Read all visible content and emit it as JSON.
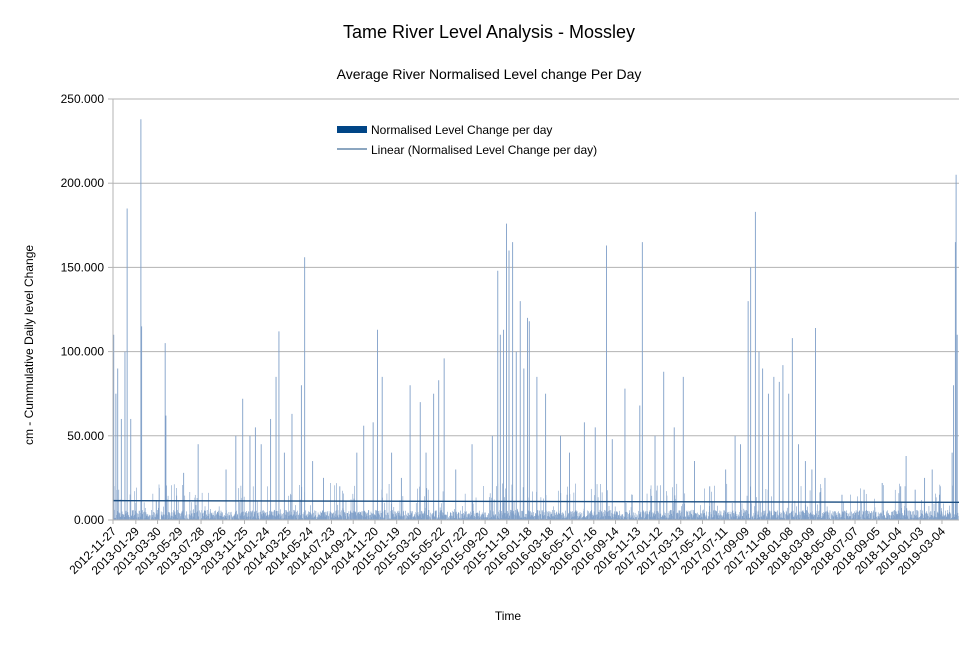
{
  "chart_data": {
    "type": "bar",
    "title": "Tame River Level Analysis - Mossley",
    "subtitle": "Average River Normalised Level change Per Day",
    "xlabel": "Time",
    "ylabel": "cm - Cummulative Daily level Change",
    "ylim": [
      0,
      250
    ],
    "y_ticks": [
      "0.000",
      "50.000",
      "100.000",
      "150.000",
      "200.000",
      "250.000"
    ],
    "grid": "horizontal",
    "legend_placement": "top-left inside plot",
    "colors": {
      "bars": "#7f9fc8",
      "trend": "#1a4d80",
      "legend_bar": "#004586",
      "grid": "#b3b3b3"
    },
    "x_start": "2012-11-27",
    "x_end": "2019-04-20",
    "x_tick_labels": [
      "2012-11-27",
      "2013-01-29",
      "2013-03-30",
      "2013-05-29",
      "2013-07-28",
      "2013-09-26",
      "2013-11-25",
      "2014-01-24",
      "2014-03-25",
      "2014-05-24",
      "2014-07-23",
      "2014-09-21",
      "2014-11-20",
      "2015-01-19",
      "2015-03-20",
      "2015-05-22",
      "2015-07-22",
      "2015-09-20",
      "2015-11-19",
      "2016-01-18",
      "2016-03-18",
      "2016-05-17",
      "2016-07-16",
      "2016-09-14",
      "2016-11-13",
      "2017-01-12",
      "2017-03-13",
      "2017-05-12",
      "2017-07-11",
      "2017-09-09",
      "2017-11-08",
      "2018-01-08",
      "2018-03-09",
      "2018-05-08",
      "2018-07-07",
      "2018-09-05",
      "2018-11-04",
      "2019-01-03",
      "2019-03-04"
    ],
    "series": [
      {
        "name": "Normalised Level Change per day",
        "kind": "bar",
        "peaks": [
          {
            "date": "2012-11-29",
            "value": 110
          },
          {
            "date": "2012-12-05",
            "value": 75
          },
          {
            "date": "2012-12-10",
            "value": 90
          },
          {
            "date": "2012-12-20",
            "value": 60
          },
          {
            "date": "2012-12-30",
            "value": 100
          },
          {
            "date": "2013-01-05",
            "value": 185
          },
          {
            "date": "2013-01-15",
            "value": 60
          },
          {
            "date": "2013-02-12",
            "value": 238
          },
          {
            "date": "2013-02-14",
            "value": 115
          },
          {
            "date": "2013-04-20",
            "value": 105
          },
          {
            "date": "2013-04-22",
            "value": 62
          },
          {
            "date": "2013-06-10",
            "value": 28
          },
          {
            "date": "2013-07-20",
            "value": 45
          },
          {
            "date": "2013-10-05",
            "value": 30
          },
          {
            "date": "2013-11-01",
            "value": 50
          },
          {
            "date": "2013-11-20",
            "value": 72
          },
          {
            "date": "2013-12-10",
            "value": 50
          },
          {
            "date": "2013-12-25",
            "value": 55
          },
          {
            "date": "2014-01-10",
            "value": 45
          },
          {
            "date": "2014-02-05",
            "value": 60
          },
          {
            "date": "2014-02-20",
            "value": 85
          },
          {
            "date": "2014-02-28",
            "value": 112
          },
          {
            "date": "2014-03-15",
            "value": 40
          },
          {
            "date": "2014-04-05",
            "value": 63
          },
          {
            "date": "2014-05-01",
            "value": 80
          },
          {
            "date": "2014-05-10",
            "value": 156
          },
          {
            "date": "2014-06-01",
            "value": 35
          },
          {
            "date": "2014-07-01",
            "value": 25
          },
          {
            "date": "2014-08-15",
            "value": 20
          },
          {
            "date": "2014-10-01",
            "value": 40
          },
          {
            "date": "2014-10-20",
            "value": 56
          },
          {
            "date": "2014-11-15",
            "value": 58
          },
          {
            "date": "2014-11-27",
            "value": 113
          },
          {
            "date": "2014-12-10",
            "value": 85
          },
          {
            "date": "2015-01-05",
            "value": 40
          },
          {
            "date": "2015-02-01",
            "value": 25
          },
          {
            "date": "2015-02-25",
            "value": 80
          },
          {
            "date": "2015-03-25",
            "value": 70
          },
          {
            "date": "2015-04-10",
            "value": 40
          },
          {
            "date": "2015-05-01",
            "value": 75
          },
          {
            "date": "2015-05-15",
            "value": 83
          },
          {
            "date": "2015-05-30",
            "value": 96
          },
          {
            "date": "2015-07-01",
            "value": 30
          },
          {
            "date": "2015-08-15",
            "value": 45
          },
          {
            "date": "2015-10-10",
            "value": 50
          },
          {
            "date": "2015-10-25",
            "value": 148
          },
          {
            "date": "2015-11-01",
            "value": 110
          },
          {
            "date": "2015-11-10",
            "value": 113
          },
          {
            "date": "2015-11-18",
            "value": 176
          },
          {
            "date": "2015-11-25",
            "value": 160
          },
          {
            "date": "2015-12-05",
            "value": 165
          },
          {
            "date": "2015-12-15",
            "value": 100
          },
          {
            "date": "2015-12-26",
            "value": 130
          },
          {
            "date": "2016-01-05",
            "value": 90
          },
          {
            "date": "2016-01-15",
            "value": 120
          },
          {
            "date": "2016-01-20",
            "value": 118
          },
          {
            "date": "2016-02-10",
            "value": 85
          },
          {
            "date": "2016-03-05",
            "value": 75
          },
          {
            "date": "2016-04-15",
            "value": 50
          },
          {
            "date": "2016-05-10",
            "value": 40
          },
          {
            "date": "2016-06-20",
            "value": 58
          },
          {
            "date": "2016-07-20",
            "value": 55
          },
          {
            "date": "2016-08-20",
            "value": 163
          },
          {
            "date": "2016-09-05",
            "value": 48
          },
          {
            "date": "2016-10-10",
            "value": 78
          },
          {
            "date": "2016-11-20",
            "value": 68
          },
          {
            "date": "2016-11-27",
            "value": 165
          },
          {
            "date": "2017-01-01",
            "value": 50
          },
          {
            "date": "2017-01-25",
            "value": 88
          },
          {
            "date": "2017-02-23",
            "value": 55
          },
          {
            "date": "2017-03-20",
            "value": 85
          },
          {
            "date": "2017-04-20",
            "value": 35
          },
          {
            "date": "2017-06-01",
            "value": 20
          },
          {
            "date": "2017-07-15",
            "value": 30
          },
          {
            "date": "2017-08-10",
            "value": 50
          },
          {
            "date": "2017-08-25",
            "value": 45
          },
          {
            "date": "2017-09-15",
            "value": 130
          },
          {
            "date": "2017-09-22",
            "value": 150
          },
          {
            "date": "2017-10-05",
            "value": 183
          },
          {
            "date": "2017-10-15",
            "value": 100
          },
          {
            "date": "2017-10-25",
            "value": 90
          },
          {
            "date": "2017-11-10",
            "value": 75
          },
          {
            "date": "2017-11-25",
            "value": 85
          },
          {
            "date": "2017-12-10",
            "value": 82
          },
          {
            "date": "2017-12-20",
            "value": 92
          },
          {
            "date": "2018-01-05",
            "value": 75
          },
          {
            "date": "2018-01-15",
            "value": 108
          },
          {
            "date": "2018-02-01",
            "value": 45
          },
          {
            "date": "2018-02-20",
            "value": 35
          },
          {
            "date": "2018-03-10",
            "value": 30
          },
          {
            "date": "2018-03-20",
            "value": 114
          },
          {
            "date": "2018-04-15",
            "value": 25
          },
          {
            "date": "2018-06-01",
            "value": 15
          },
          {
            "date": "2018-08-01",
            "value": 18
          },
          {
            "date": "2018-09-20",
            "value": 22
          },
          {
            "date": "2018-11-10",
            "value": 20
          },
          {
            "date": "2018-11-25",
            "value": 38
          },
          {
            "date": "2018-12-20",
            "value": 18
          },
          {
            "date": "2019-01-15",
            "value": 25
          },
          {
            "date": "2019-02-05",
            "value": 30
          },
          {
            "date": "2019-02-25",
            "value": 15
          },
          {
            "date": "2019-04-01",
            "value": 40
          },
          {
            "date": "2019-04-05",
            "value": 80
          },
          {
            "date": "2019-04-10",
            "value": 165
          },
          {
            "date": "2019-04-12",
            "value": 205
          },
          {
            "date": "2019-04-15",
            "value": 110
          }
        ]
      },
      {
        "name": "Linear (Normalised Level Change per day)",
        "kind": "trendline",
        "start": {
          "date": "2012-11-27",
          "value": 11.5
        },
        "end": {
          "date": "2019-04-20",
          "value": 10.5
        }
      }
    ]
  }
}
